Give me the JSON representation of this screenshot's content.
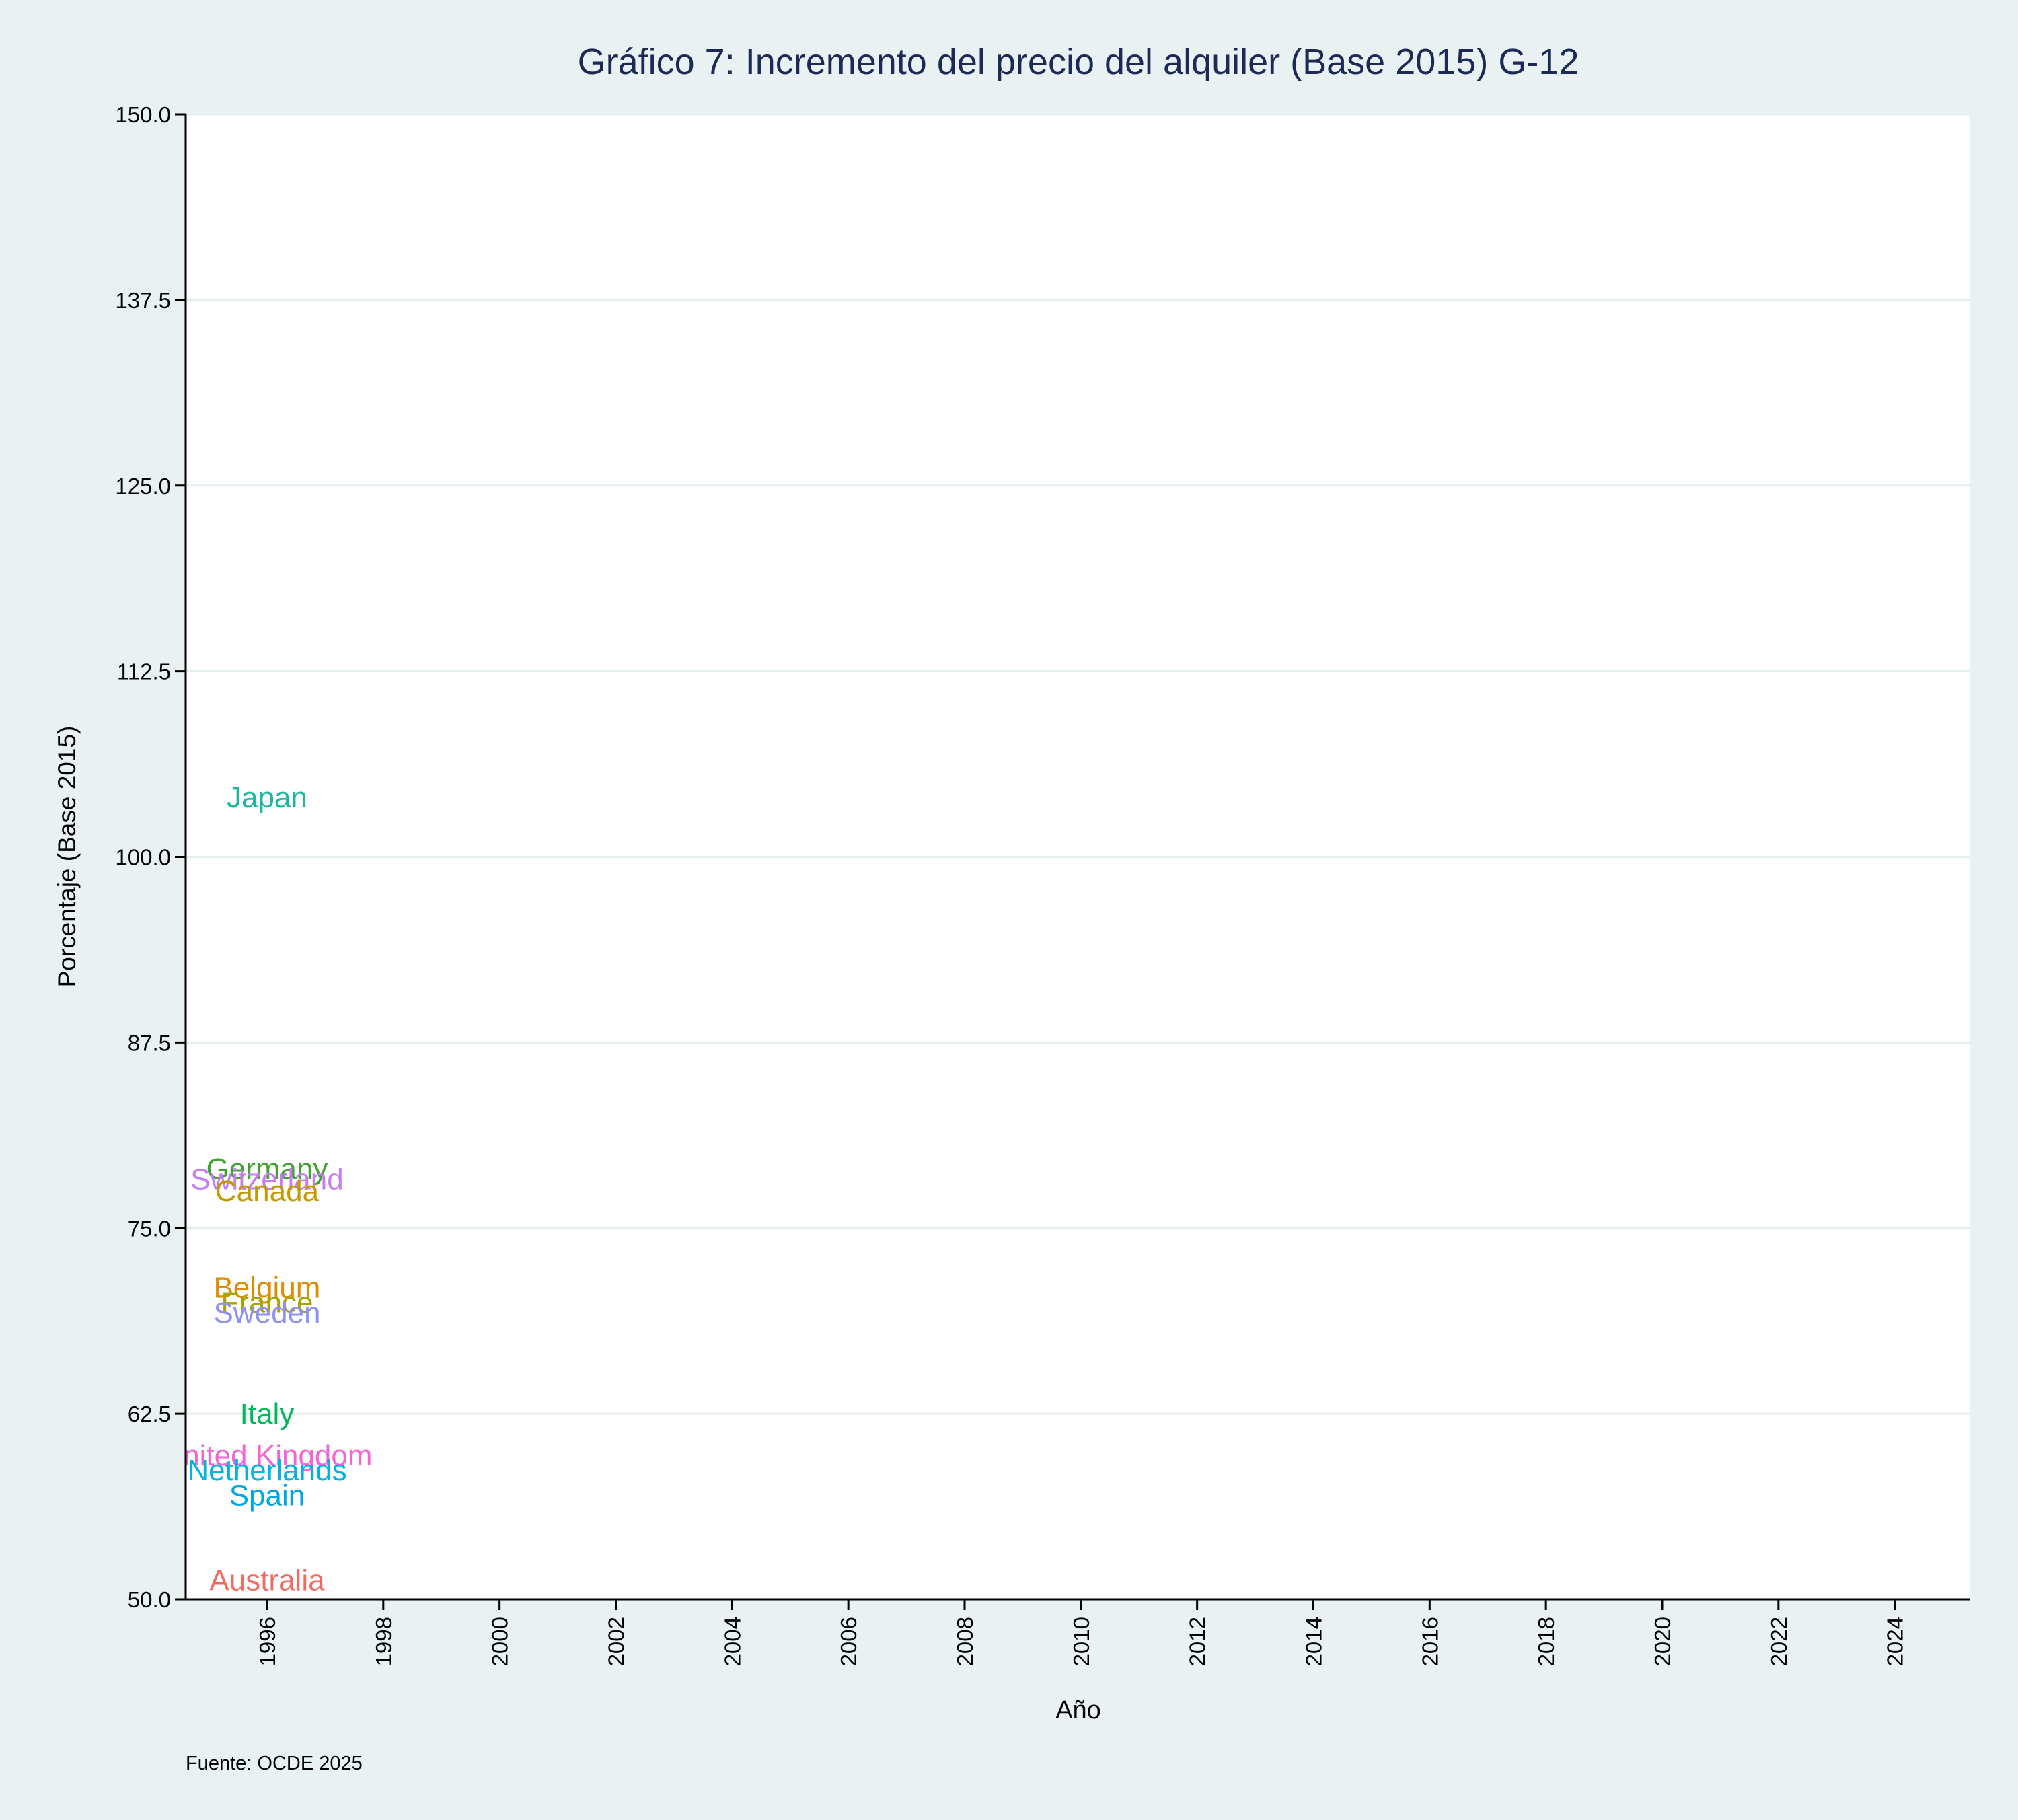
{
  "chart_data": {
    "type": "line",
    "title": "Gráfico 7: Incremento del precio del alquiler (Base 2015) G-12",
    "xlabel": "Año",
    "ylabel": "Porcentaje (Base 2015)",
    "note": "Fuente: OCDE 2025",
    "xlim": [
      1994.6,
      2025.3
    ],
    "ylim": [
      50,
      150
    ],
    "x_ticks": [
      "1996",
      "1998",
      "2000",
      "2002",
      "2004",
      "2006",
      "2008",
      "2010",
      "2012",
      "2014",
      "2016",
      "2018",
      "2020",
      "2022",
      "2024"
    ],
    "y_ticks": [
      "50.0",
      "62.5",
      "75.0",
      "87.5",
      "100.0",
      "112.5",
      "125.0",
      "137.5",
      "150.0"
    ],
    "grid": true,
    "legend": "none",
    "labels": [
      {
        "name": "Japan",
        "x": 1996,
        "y": 104.0,
        "color": "#19b99e"
      },
      {
        "name": "Germany",
        "x": 1996,
        "y": 79.0,
        "color": "#3fa32e"
      },
      {
        "name": "Switzerland",
        "x": 1996,
        "y": 78.3,
        "color": "#c77cf5"
      },
      {
        "name": "Canada",
        "x": 1996,
        "y": 77.5,
        "color": "#c49a00"
      },
      {
        "name": "Belgium",
        "x": 1996,
        "y": 71.0,
        "color": "#e08b00"
      },
      {
        "name": "France",
        "x": 1996,
        "y": 70.0,
        "color": "#a3a500"
      },
      {
        "name": "Sweden",
        "x": 1996,
        "y": 69.3,
        "color": "#8f91f7"
      },
      {
        "name": "Italy",
        "x": 1996,
        "y": 62.5,
        "color": "#00b85a"
      },
      {
        "name": "United Kingdom",
        "x": 1996,
        "y": 59.7,
        "color": "#f464d6"
      },
      {
        "name": "Netherlands",
        "x": 1996,
        "y": 58.7,
        "color": "#00b4dd"
      },
      {
        "name": "Spain",
        "x": 1996,
        "y": 57.0,
        "color": "#00a5e6"
      },
      {
        "name": "Australia",
        "x": 1996,
        "y": 51.3,
        "color": "#f26b63"
      }
    ],
    "colors": {
      "title": "#1c2a55",
      "axis": "#000000",
      "grid": "#e6eef0",
      "plot_bg": "#ffffff",
      "page_bg": "#eaf1f2"
    }
  }
}
